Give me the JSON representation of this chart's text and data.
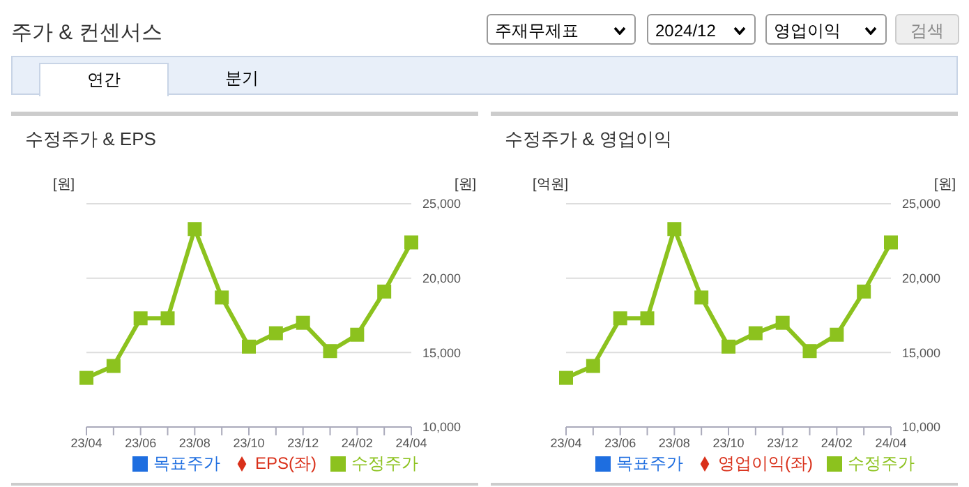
{
  "chart_data": [
    {
      "type": "line",
      "title": "수정주가 & EPS",
      "ylabel": "[원]",
      "y2label": "[원]",
      "annotations": [
        "주가 & 컨센서스",
        "주재무제표",
        "2024/12",
        "영업이익",
        "검색",
        "연간",
        "분기"
      ],
      "categories": [
        "23/04",
        null,
        "23/06",
        null,
        "23/08",
        null,
        "23/10",
        null,
        "23/12",
        null,
        "24/02",
        null,
        "24/04"
      ],
      "series": [
        {
          "name": "목표주가",
          "color": "#1e6ee0",
          "marker": "square",
          "axis": "y2",
          "values": [
            null,
            null,
            null,
            null,
            null,
            null,
            null,
            null,
            null,
            null,
            null,
            null,
            null
          ]
        },
        {
          "name": "EPS(좌)",
          "color": "#d9301a",
          "marker": "diamond",
          "axis": "y",
          "values": [
            null,
            null,
            null,
            null,
            null,
            null,
            null,
            null,
            null,
            null,
            null,
            null,
            null
          ]
        },
        {
          "name": "수정주가",
          "color": "#8cc21e",
          "marker": "square",
          "axis": "y2",
          "values": [
            13300,
            14100,
            17300,
            17300,
            23300,
            18700,
            15400,
            16300,
            17000,
            15100,
            16200,
            19100,
            22400
          ]
        }
      ],
      "y2lim": [
        10000,
        25000
      ],
      "y2ticks": [
        {
          "value": 10000,
          "label": "10,000"
        },
        {
          "value": 15000,
          "label": "15,000"
        },
        {
          "value": 20000,
          "label": "20,000"
        },
        {
          "value": 25000,
          "label": "25,000"
        }
      ],
      "grid": "y",
      "legend": "bottom"
    },
    {
      "type": "line",
      "title": "수정주가 & 영업이익",
      "ylabel": "[억원]",
      "y2label": "[원]",
      "categories": [
        "23/04",
        null,
        "23/06",
        null,
        "23/08",
        null,
        "23/10",
        null,
        "23/12",
        null,
        "24/02",
        null,
        "24/04"
      ],
      "series": [
        {
          "name": "목표주가",
          "color": "#1e6ee0",
          "marker": "square",
          "axis": "y2",
          "values": [
            null,
            null,
            null,
            null,
            null,
            null,
            null,
            null,
            null,
            null,
            null,
            null,
            null
          ]
        },
        {
          "name": "영업이익(좌)",
          "color": "#d9301a",
          "marker": "diamond",
          "axis": "y",
          "values": [
            null,
            null,
            null,
            null,
            null,
            null,
            null,
            null,
            null,
            null,
            null,
            null,
            null
          ]
        },
        {
          "name": "수정주가",
          "color": "#8cc21e",
          "marker": "square",
          "axis": "y2",
          "values": [
            13300,
            14100,
            17300,
            17300,
            23300,
            18700,
            15400,
            16300,
            17000,
            15100,
            16200,
            19100,
            22400
          ]
        }
      ],
      "y2lim": [
        10000,
        25000
      ],
      "y2ticks": [
        {
          "value": 10000,
          "label": "10,000"
        },
        {
          "value": 15000,
          "label": "15,000"
        },
        {
          "value": 20000,
          "label": "20,000"
        },
        {
          "value": 25000,
          "label": "25,000"
        }
      ],
      "grid": "y",
      "legend": "bottom"
    }
  ]
}
